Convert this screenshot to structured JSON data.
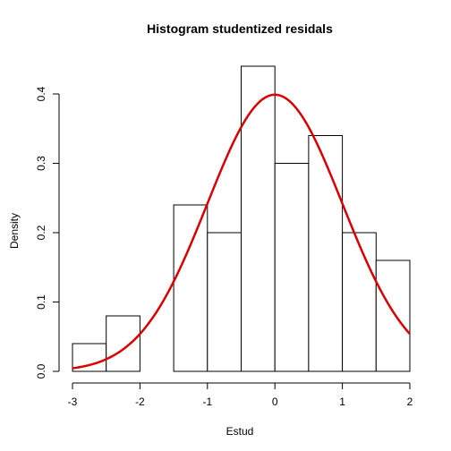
{
  "chart_data": {
    "type": "histogram",
    "title": "Histogram studentized residals",
    "xlabel": "Estud",
    "ylabel": "Density",
    "xlim": [
      -3,
      2
    ],
    "ylim": [
      0,
      0.44
    ],
    "x_ticks": [
      "-3",
      "-2",
      "-1",
      "0",
      "1",
      "2"
    ],
    "y_ticks": [
      "0.0",
      "0.1",
      "0.2",
      "0.3",
      "0.4"
    ],
    "bins": [
      {
        "from": -3.0,
        "to": -2.5,
        "density": 0.04
      },
      {
        "from": -2.5,
        "to": -2.0,
        "density": 0.08
      },
      {
        "from": -2.0,
        "to": -1.5,
        "density": 0.0
      },
      {
        "from": -1.5,
        "to": -1.0,
        "density": 0.24
      },
      {
        "from": -1.0,
        "to": -0.5,
        "density": 0.2
      },
      {
        "from": -0.5,
        "to": 0.0,
        "density": 0.44
      },
      {
        "from": 0.0,
        "to": 0.5,
        "density": 0.3
      },
      {
        "from": 0.5,
        "to": 1.0,
        "density": 0.34
      },
      {
        "from": 1.0,
        "to": 1.5,
        "density": 0.2
      },
      {
        "from": 1.5,
        "to": 2.0,
        "density": 0.16
      }
    ],
    "density_curve": {
      "distribution": "standard normal",
      "mean": 0,
      "sd": 1,
      "color": "#dd0000"
    },
    "bar_fill": "#ffffff",
    "bar_stroke": "#000000",
    "grid": false
  }
}
